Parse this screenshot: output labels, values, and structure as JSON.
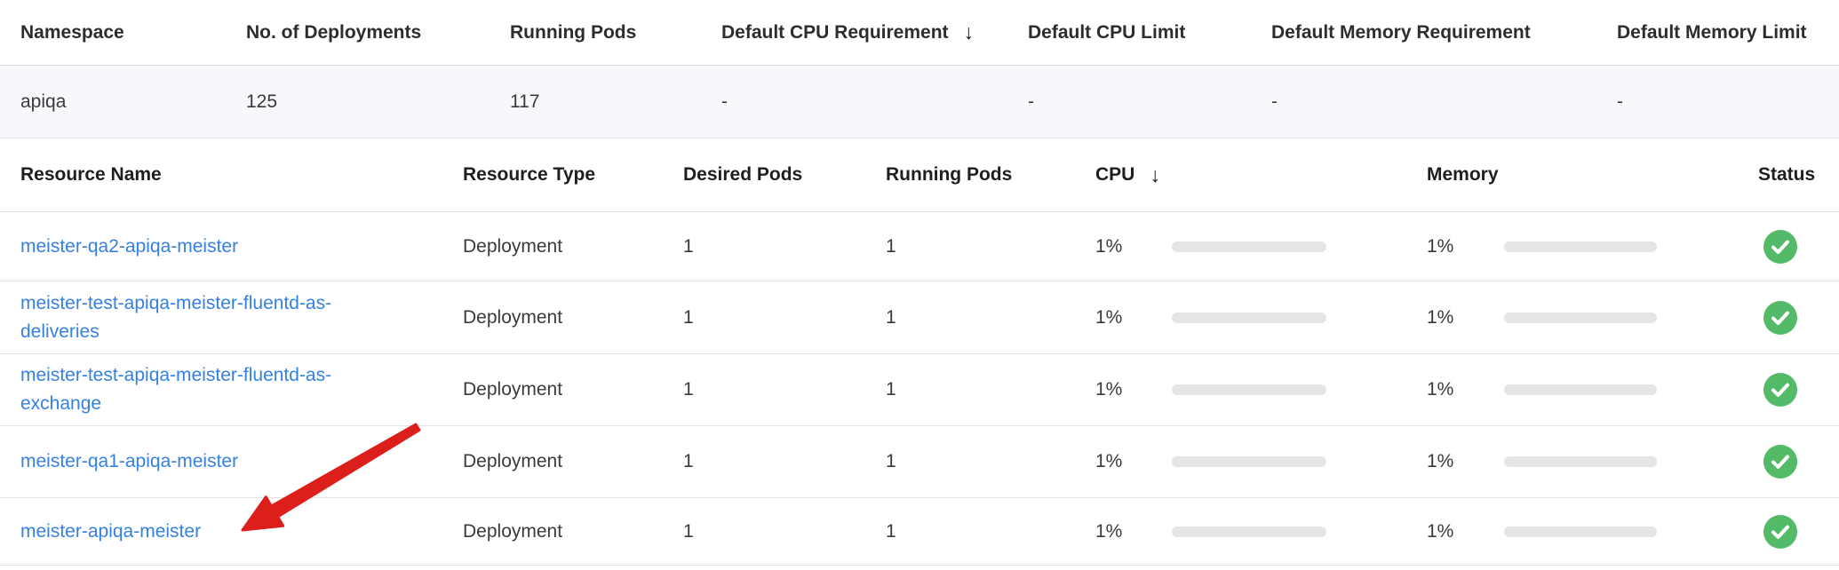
{
  "summary_table": {
    "columns": [
      "Namespace",
      "No. of Deployments",
      "Running Pods",
      "Default CPU Requirement",
      "Default CPU Limit",
      "Default Memory Requirement",
      "Default Memory Limit"
    ],
    "sorted_column": "Default CPU Requirement",
    "sort_direction": "descending",
    "row": {
      "namespace": "apiqa",
      "deployments": "125",
      "running_pods": "117",
      "default_cpu_requirement": "-",
      "default_cpu_limit": "-",
      "default_memory_requirement": "-",
      "default_memory_limit": "-"
    }
  },
  "resources_table": {
    "columns": [
      "Resource Name",
      "Resource Type",
      "Desired Pods",
      "Running Pods",
      "CPU",
      "Memory",
      "Status"
    ],
    "sorted_column": "CPU",
    "sort_direction": "descending",
    "rows": [
      {
        "name": "meister-qa2-apiqa-meister",
        "type": "Deployment",
        "desired": "1",
        "running": "1",
        "cpu": "1%",
        "cpu_pct": 1,
        "memory": "1%",
        "memory_pct": 1,
        "status": "healthy"
      },
      {
        "name": "meister-test-apiqa-meister-fluentd-as-deliveries",
        "type": "Deployment",
        "desired": "1",
        "running": "1",
        "cpu": "1%",
        "cpu_pct": 1,
        "memory": "1%",
        "memory_pct": 1,
        "status": "healthy"
      },
      {
        "name": "meister-test-apiqa-meister-fluentd-as-exchange",
        "type": "Deployment",
        "desired": "1",
        "running": "1",
        "cpu": "1%",
        "cpu_pct": 1,
        "memory": "1%",
        "memory_pct": 1,
        "status": "healthy"
      },
      {
        "name": "meister-qa1-apiqa-meister",
        "type": "Deployment",
        "desired": "1",
        "running": "1",
        "cpu": "1%",
        "cpu_pct": 1,
        "memory": "1%",
        "memory_pct": 1,
        "status": "healthy"
      },
      {
        "name": "meister-apiqa-meister",
        "type": "Deployment",
        "desired": "1",
        "running": "1",
        "cpu": "1%",
        "cpu_pct": 1,
        "memory": "1%",
        "memory_pct": 1,
        "status": "healthy"
      }
    ]
  },
  "icons": {
    "sort_desc": "↓",
    "status_ok": "check-circle"
  },
  "colors": {
    "link_blue": "#3481e2",
    "cpu_bar_fill": "#3b7de8",
    "memory_bar_fill": "#4cab57",
    "status_green": "#53ba68",
    "annotation_red": "#dc1f1a",
    "row_highlight": "#f7f8fc"
  },
  "annotation": {
    "type": "red-arrow",
    "points_to": "meister-apiqa-meister"
  }
}
